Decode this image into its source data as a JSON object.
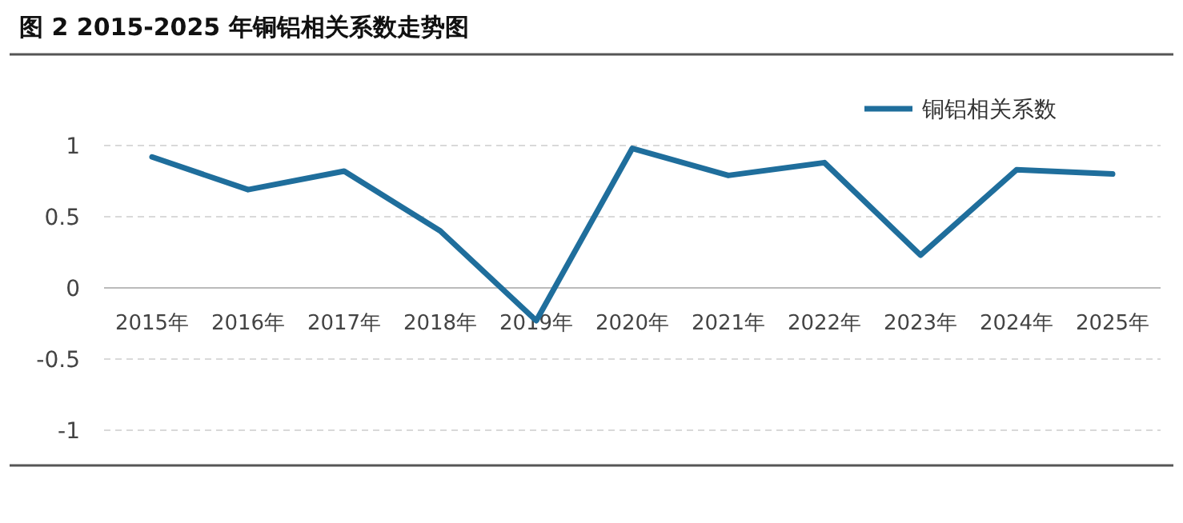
{
  "chart_data": {
    "type": "line",
    "title": "图 2 2015-2025 年铜铝相关系数走势图",
    "categories": [
      "2015年",
      "2016年",
      "2017年",
      "2018年",
      "2019年",
      "2020年",
      "2021年",
      "2022年",
      "2023年",
      "2024年",
      "2025年"
    ],
    "series": [
      {
        "name": "铜铝相关系数",
        "color": "#1f6e9c",
        "values": [
          0.92,
          0.69,
          0.82,
          0.4,
          -0.23,
          0.98,
          0.79,
          0.88,
          0.23,
          0.83,
          0.8
        ]
      }
    ],
    "ylim": [
      -1,
      1
    ],
    "yticks": [
      -1,
      -0.5,
      0,
      0.5,
      1
    ],
    "grid": "y",
    "legend": "top right"
  }
}
